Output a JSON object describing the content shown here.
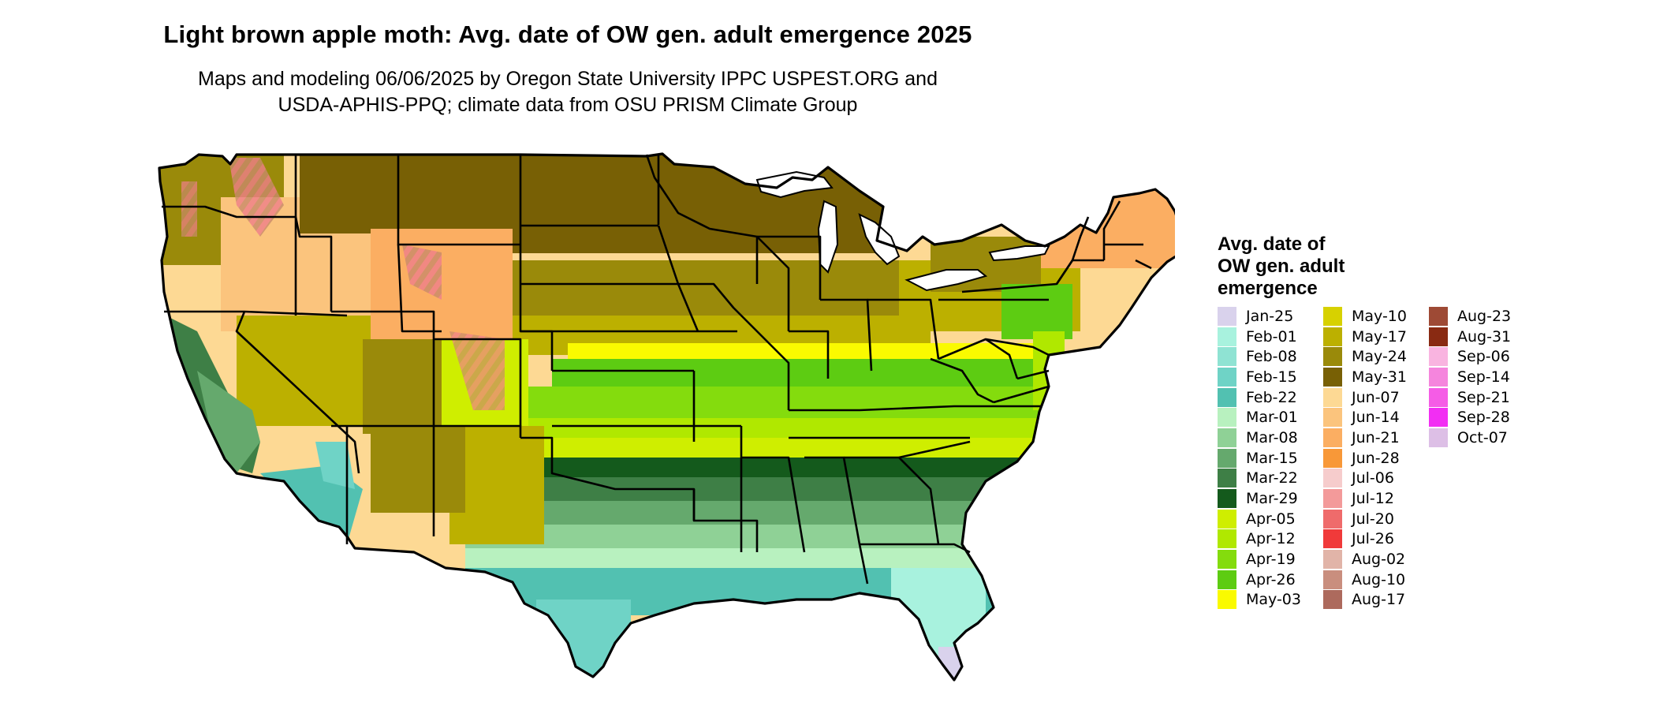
{
  "title": "Light brown apple moth: Avg. date of OW gen. adult emergence 2025",
  "subtitle_line1": "Maps and modeling 06/06/2025 by Oregon State University IPPC USPEST.ORG and",
  "subtitle_line2": "USDA-APHIS-PPQ; climate data from OSU PRISM Climate Group",
  "legend": {
    "title_line1": "Avg. date of",
    "title_line2": "OW gen. adult",
    "title_line3": "emergence",
    "columns": [
      [
        {
          "label": "Jan-25",
          "color": "#d9d2ec"
        },
        {
          "label": "Feb-01",
          "color": "#a8f2de"
        },
        {
          "label": "Feb-08",
          "color": "#8fe3d3"
        },
        {
          "label": "Feb-15",
          "color": "#6fd3c6"
        },
        {
          "label": "Feb-22",
          "color": "#52c1b1"
        },
        {
          "label": "Mar-01",
          "color": "#b8f1bf"
        },
        {
          "label": "Mar-08",
          "color": "#8fd196"
        },
        {
          "label": "Mar-15",
          "color": "#65a96d"
        },
        {
          "label": "Mar-22",
          "color": "#3e7f46"
        },
        {
          "label": "Mar-29",
          "color": "#145a1c"
        },
        {
          "label": "Apr-05",
          "color": "#cfee00"
        },
        {
          "label": "Apr-12",
          "color": "#b0e800"
        },
        {
          "label": "Apr-19",
          "color": "#84dc0d"
        },
        {
          "label": "Apr-26",
          "color": "#5dcc12"
        },
        {
          "label": "May-03",
          "color": "#fafa00"
        }
      ],
      [
        {
          "label": "May-10",
          "color": "#d7d100"
        },
        {
          "label": "May-17",
          "color": "#bcb000"
        },
        {
          "label": "May-24",
          "color": "#9a8a0a"
        },
        {
          "label": "May-31",
          "color": "#786005"
        },
        {
          "label": "Jun-07",
          "color": "#fdd994"
        },
        {
          "label": "Jun-14",
          "color": "#fbc47d"
        },
        {
          "label": "Jun-21",
          "color": "#fbae62"
        },
        {
          "label": "Jun-28",
          "color": "#f89838"
        },
        {
          "label": "Jul-06",
          "color": "#f6cccc"
        },
        {
          "label": "Jul-12",
          "color": "#f39a9a"
        },
        {
          "label": "Jul-20",
          "color": "#ef6b6b"
        },
        {
          "label": "Jul-26",
          "color": "#f03a3a"
        },
        {
          "label": "Aug-02",
          "color": "#e1b4a8"
        },
        {
          "label": "Aug-10",
          "color": "#c98e7e"
        },
        {
          "label": "Aug-17",
          "color": "#ad6a5d"
        }
      ],
      [
        {
          "label": "Aug-23",
          "color": "#9e4a35"
        },
        {
          "label": "Aug-31",
          "color": "#892a12"
        },
        {
          "label": "Sep-06",
          "color": "#f9b4e0"
        },
        {
          "label": "Sep-14",
          "color": "#f585dd"
        },
        {
          "label": "Sep-21",
          "color": "#f55ce6"
        },
        {
          "label": "Sep-28",
          "color": "#f22ef3"
        },
        {
          "label": "Oct-07",
          "color": "#ddbfe6"
        }
      ]
    ]
  }
}
